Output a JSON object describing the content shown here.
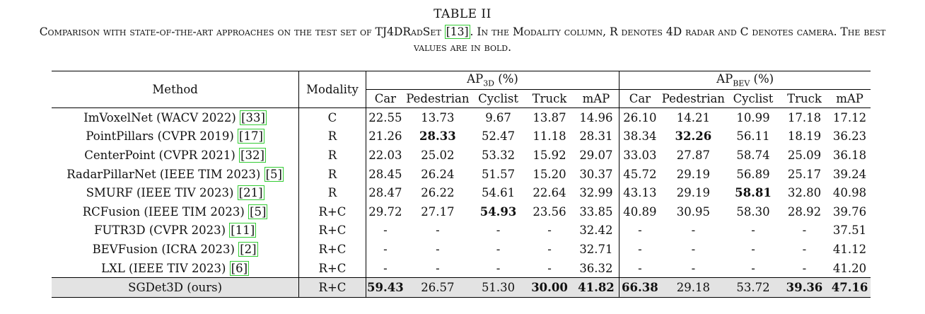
{
  "caption": {
    "title": "TABLE II",
    "text_pre": "Comparison with state-of-the-art approaches on the test set of TJ4DRadSet ",
    "cite": "[13]",
    "text_post": ". In the Modality column, R denotes 4D radar and C denotes camera. The best values are in bold."
  },
  "headers": {
    "method": "Method",
    "modality": "Modality",
    "ap3d_main": "AP",
    "ap3d_sub": "3D",
    "ap3d_unit": " (%)",
    "apbev_main": "AP",
    "apbev_sub": "BEV",
    "apbev_unit": " (%)",
    "cols": [
      "Car",
      "Pedestrian",
      "Cyclist",
      "Truck",
      "mAP"
    ]
  },
  "rows": [
    {
      "method": "ImVoxelNet (WACV 2022) ",
      "cite": "[33]",
      "modality": "C",
      "ap3d": [
        "22.55",
        "13.73",
        "9.67",
        "13.87",
        "14.96"
      ],
      "apbev": [
        "26.10",
        "14.21",
        "10.99",
        "17.18",
        "17.12"
      ]
    },
    {
      "method": "PointPillars (CVPR 2019) ",
      "cite": "[17]",
      "modality": "R",
      "ap3d": [
        "21.26",
        "28.33",
        "52.47",
        "11.18",
        "28.31"
      ],
      "apbev": [
        "38.34",
        "32.26",
        "56.11",
        "18.19",
        "36.23"
      ]
    },
    {
      "method": "CenterPoint (CVPR 2021) ",
      "cite": "[32]",
      "modality": "R",
      "ap3d": [
        "22.03",
        "25.02",
        "53.32",
        "15.92",
        "29.07"
      ],
      "apbev": [
        "33.03",
        "27.87",
        "58.74",
        "25.09",
        "36.18"
      ]
    },
    {
      "method": "RadarPillarNet (IEEE TIM 2023) ",
      "cite": "[5]",
      "modality": "R",
      "ap3d": [
        "28.45",
        "26.24",
        "51.57",
        "15.20",
        "30.37"
      ],
      "apbev": [
        "45.72",
        "29.19",
        "56.89",
        "25.17",
        "39.24"
      ]
    },
    {
      "method": "SMURF (IEEE TIV 2023) ",
      "cite": "[21]",
      "modality": "R",
      "ap3d": [
        "28.47",
        "26.22",
        "54.61",
        "22.64",
        "32.99"
      ],
      "apbev": [
        "43.13",
        "29.19",
        "58.81",
        "32.80",
        "40.98"
      ]
    },
    {
      "method": "RCFusion (IEEE TIM 2023) ",
      "cite": "[5]",
      "modality": "R+C",
      "ap3d": [
        "29.72",
        "27.17",
        "54.93",
        "23.56",
        "33.85"
      ],
      "apbev": [
        "40.89",
        "30.95",
        "58.30",
        "28.92",
        "39.76"
      ]
    },
    {
      "method": "FUTR3D (CVPR 2023) ",
      "cite": "[11]",
      "modality": "R+C",
      "ap3d": [
        "-",
        "-",
        "-",
        "-",
        "32.42"
      ],
      "apbev": [
        "-",
        "-",
        "-",
        "-",
        "37.51"
      ]
    },
    {
      "method": "BEVFusion (ICRA 2023) ",
      "cite": "[2]",
      "modality": "R+C",
      "ap3d": [
        "-",
        "-",
        "-",
        "-",
        "32.71"
      ],
      "apbev": [
        "-",
        "-",
        "-",
        "-",
        "41.12"
      ]
    },
    {
      "method": "LXL (IEEE TIV 2023) ",
      "cite": "[6]",
      "modality": "R+C",
      "ap3d": [
        "-",
        "-",
        "-",
        "-",
        "36.32"
      ],
      "apbev": [
        "-",
        "-",
        "-",
        "-",
        "41.20"
      ]
    },
    {
      "method": "SGDet3D (ours)",
      "cite": "",
      "modality": "R+C",
      "ap3d": [
        "59.43",
        "26.57",
        "51.30",
        "30.00",
        "41.82"
      ],
      "apbev": [
        "66.38",
        "29.18",
        "53.72",
        "39.36",
        "47.16"
      ]
    }
  ]
}
